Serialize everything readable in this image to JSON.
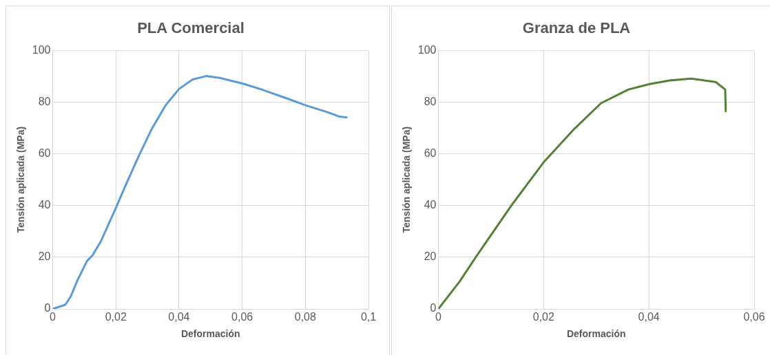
{
  "chart_data": [
    {
      "type": "line",
      "title": "PLA Comercial",
      "xlabel": "Deformación",
      "ylabel": "Tensión aplicada (MPa)",
      "series": [
        {
          "color": "#5b9bd5",
          "x": [
            0,
            0.004,
            0.0057,
            0.0079,
            0.0109,
            0.0126,
            0.0152,
            0.0199,
            0.0229,
            0.0272,
            0.0314,
            0.0357,
            0.04,
            0.0443,
            0.0486,
            0.0529,
            0.0602,
            0.0657,
            0.0743,
            0.0803,
            0.0871,
            0.0906,
            0.0931
          ],
          "values": [
            0,
            1.6,
            4.8,
            11.2,
            18.6,
            20.7,
            26,
            38.8,
            47.3,
            59,
            69.7,
            78.7,
            85.1,
            88.8,
            90.1,
            89.4,
            87.2,
            85.1,
            81.4,
            78.7,
            76.1,
            74.5,
            74.1
          ]
        }
      ],
      "xlim": [
        0,
        0.1
      ],
      "xticks": [
        0,
        {
          "value": 0.02,
          "label": "0,02"
        },
        {
          "value": 0.04,
          "label": "0,04"
        },
        {
          "value": 0.06,
          "label": "0,06"
        },
        {
          "value": 0.08,
          "label": "0,08"
        },
        {
          "value": 0.1,
          "label": "0,1"
        }
      ],
      "ylim": [
        0,
        100
      ],
      "yticks": [
        0,
        20,
        40,
        60,
        80,
        100
      ],
      "grid": true,
      "legend": false,
      "marker": "none",
      "line_style": "solid"
    },
    {
      "type": "line",
      "title": "Granza de PLA",
      "xlabel": "Deformación",
      "ylabel": "Tensión aplicada (MPa)",
      "series": [
        {
          "color": "#538135",
          "x": [
            0,
            0.004,
            0.0071,
            0.0139,
            0.0201,
            0.0258,
            0.0309,
            0.0361,
            0.0401,
            0.0439,
            0.048,
            0.0527,
            0.0545,
            0.0546
          ],
          "values": [
            0,
            10.5,
            20,
            40.1,
            57,
            69.6,
            79.6,
            84.9,
            87,
            88.4,
            89.1,
            87.8,
            84.9,
            76.5
          ]
        }
      ],
      "xlim": [
        0,
        0.06
      ],
      "xticks": [
        0,
        {
          "value": 0.02,
          "label": "0,02"
        },
        {
          "value": 0.04,
          "label": "0,04"
        },
        {
          "value": 0.06,
          "label": "0,06"
        }
      ],
      "ylim": [
        0,
        100
      ],
      "yticks": [
        0,
        20,
        40,
        60,
        80,
        100
      ],
      "grid": true,
      "legend": false,
      "marker": "none",
      "line_style": "solid"
    }
  ]
}
